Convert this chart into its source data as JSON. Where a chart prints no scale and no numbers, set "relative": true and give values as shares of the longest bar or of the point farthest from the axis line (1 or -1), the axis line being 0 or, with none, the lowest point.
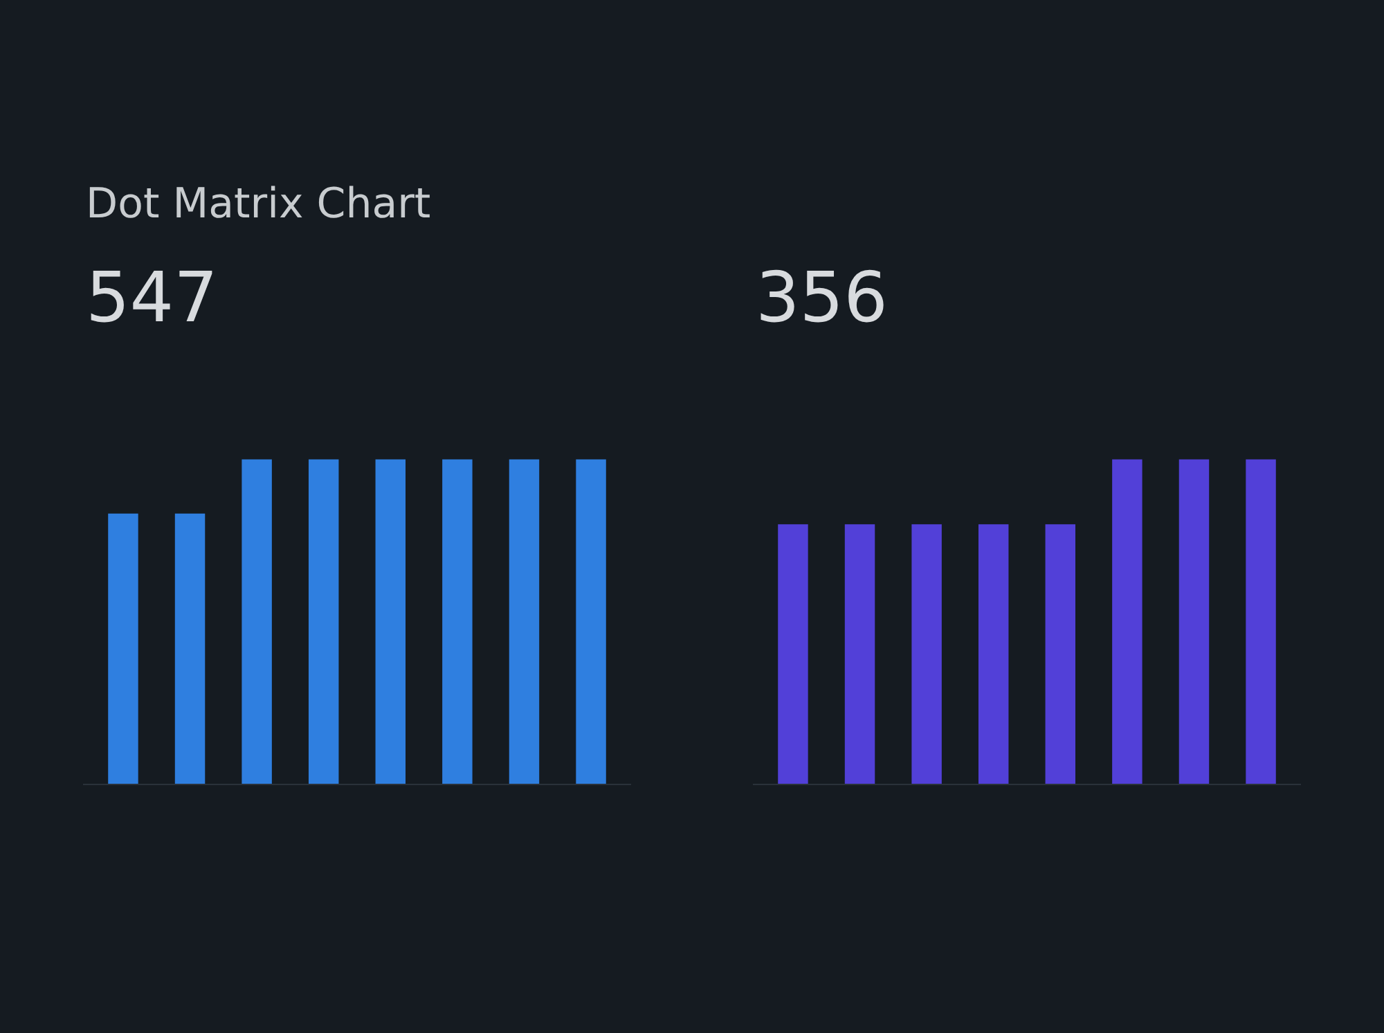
{
  "chart_data": [
    {
      "type": "bar",
      "title": "Dot Matrix Chart",
      "subtitle": "547",
      "relative": true,
      "categories": [
        null,
        null,
        null,
        null,
        null,
        null,
        null,
        null
      ],
      "series": [
        {
          "color": "#2f7fe0",
          "values": [
            0.833,
            0.833,
            1,
            1,
            1,
            1,
            1,
            1
          ]
        }
      ]
    },
    {
      "type": "bar",
      "subtitle": "356",
      "relative": true,
      "categories": [
        null,
        null,
        null,
        null,
        null,
        null,
        null,
        null
      ],
      "series": [
        {
          "color": "#5240d8",
          "values": [
            0.8,
            0.8,
            0.8,
            0.8,
            0.8,
            1,
            1,
            1
          ]
        }
      ]
    }
  ]
}
